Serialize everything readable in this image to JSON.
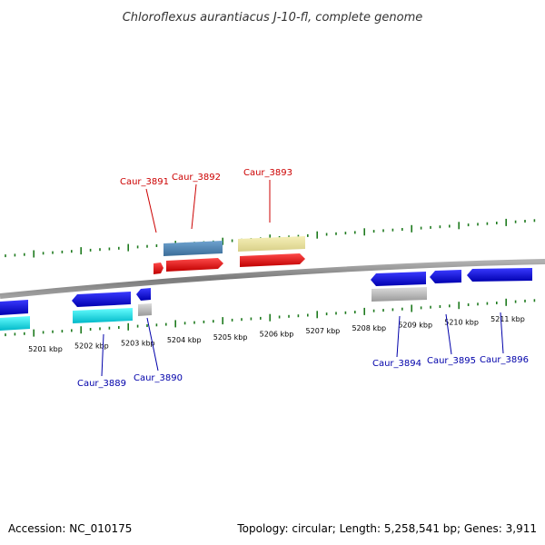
{
  "title": "Chloroflexus aurantiacus J-10-fl, complete genome",
  "footer": {
    "accession": "Accession: NC_010175",
    "summary": "Topology: circular; Length: 5,258,541 bp; Genes: 3,911"
  },
  "colors": {
    "backbone": "#8a8a8a",
    "ticks": "#1e7a1e",
    "label_top": "#cc0000",
    "label_bottom": "#0000aa",
    "blue": "#1010dd",
    "cyan": "#00e5ee",
    "red": "#ee1111",
    "steelblue": "#4f86b8",
    "khaki": "#eee6a0",
    "grey": "#c0c0c0"
  },
  "scale_labels": [
    "5201 kbp",
    "5202 kbp",
    "5203 kbp",
    "5204 kbp",
    "5205 kbp",
    "5206 kbp",
    "5207 kbp",
    "5208 kbp",
    "5209 kbp",
    "5210 kbp",
    "5211 kbp"
  ],
  "gene_labels_top": [
    "Caur_3891",
    "Caur_3892",
    "Caur_3893"
  ],
  "gene_labels_bottom": [
    "Caur_3889",
    "Caur_3890",
    "Caur_3894",
    "Caur_3895",
    "Caur_3896"
  ]
}
